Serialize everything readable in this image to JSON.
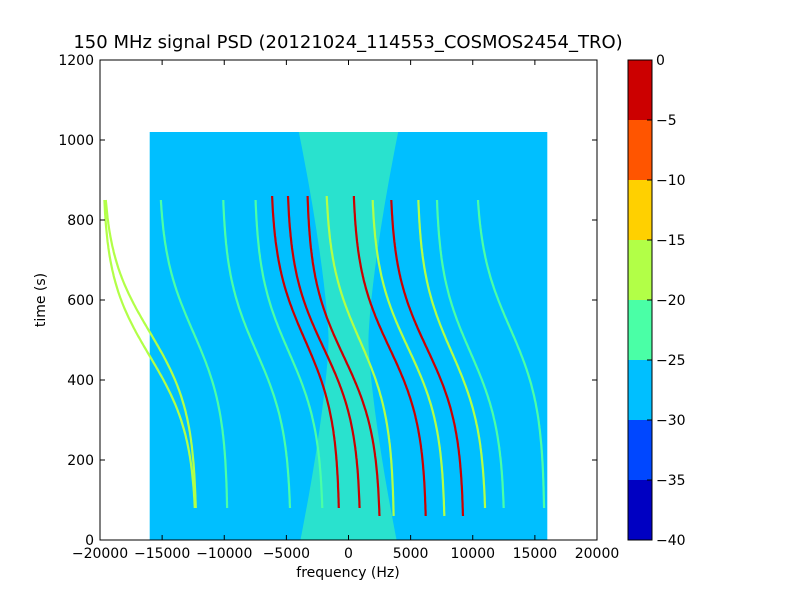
{
  "chart_data": {
    "type": "heatmap",
    "title": "150 MHz signal PSD (20121024_114553_COSMOS2454_TRO)",
    "xlabel": "frequency (Hz)",
    "ylabel": "time (s)",
    "xlim": [
      -20000,
      20000
    ],
    "ylim": [
      0,
      1200
    ],
    "xticks": [
      -20000,
      -15000,
      -10000,
      -5000,
      0,
      5000,
      10000,
      15000,
      20000
    ],
    "xtick_labels": [
      "−20000",
      "−15000",
      "−10000",
      "−5000",
      "0",
      "5000",
      "10000",
      "15000",
      "20000"
    ],
    "yticks": [
      0,
      200,
      400,
      600,
      800,
      1000,
      1200
    ],
    "ytick_labels": [
      "0",
      "200",
      "400",
      "600",
      "800",
      "1000",
      "1200"
    ],
    "data_extent": {
      "x": [
        -16000,
        16000
      ],
      "y": [
        0,
        1020
      ]
    },
    "background_level": -27.5,
    "center_band": {
      "x_center": 0,
      "level": -22.5
    },
    "traces": [
      {
        "x0": -16000,
        "t0": 520,
        "width": 3800,
        "tmin": 80,
        "tmax": 850,
        "level": -20
      },
      {
        "x0": -16000,
        "t0": 460,
        "width": 3800,
        "tmin": 80,
        "tmax": 850,
        "level": -20
      },
      {
        "x0": -12500,
        "t0": 520,
        "width": 2800,
        "tmin": 80,
        "tmax": 850,
        "level": -22.5
      },
      {
        "x0": -7400,
        "t0": 470,
        "width": 2800,
        "tmin": 80,
        "tmax": 850,
        "level": -22.5
      },
      {
        "x0": -4800,
        "t0": 470,
        "width": 2800,
        "tmin": 80,
        "tmax": 850,
        "level": -22.5
      },
      {
        "x0": -3500,
        "t0": 500,
        "width": 2800,
        "tmin": 80,
        "tmax": 860,
        "level": -2.5
      },
      {
        "x0": -2000,
        "t0": 480,
        "width": 3000,
        "tmin": 80,
        "tmax": 860,
        "level": -2.5
      },
      {
        "x0": -400,
        "t0": 460,
        "width": 3000,
        "tmin": 60,
        "tmax": 860,
        "level": -2.5
      },
      {
        "x0": 900,
        "t0": 500,
        "width": 2800,
        "tmin": 60,
        "tmax": 860,
        "level": -17.5
      },
      {
        "x0": 3300,
        "t0": 480,
        "width": 3000,
        "tmin": 60,
        "tmax": 860,
        "level": -2.5
      },
      {
        "x0": 4800,
        "t0": 480,
        "width": 3000,
        "tmin": 60,
        "tmax": 850,
        "level": -17.5
      },
      {
        "x0": 6300,
        "t0": 480,
        "width": 3000,
        "tmin": 60,
        "tmax": 850,
        "level": -2.5
      },
      {
        "x0": 8300,
        "t0": 470,
        "width": 2800,
        "tmin": 80,
        "tmax": 850,
        "level": -17.5
      },
      {
        "x0": 9800,
        "t0": 470,
        "width": 2800,
        "tmin": 80,
        "tmax": 850,
        "level": -22.5
      },
      {
        "x0": 13000,
        "t0": 530,
        "width": 2800,
        "tmin": 80,
        "tmax": 850,
        "level": -22.5
      }
    ],
    "colorbar": {
      "ticks": [
        0,
        -5,
        -10,
        -15,
        -20,
        -25,
        -30,
        -35,
        -40
      ],
      "tick_labels": [
        "0",
        "−5",
        "−10",
        "−15",
        "−20",
        "−25",
        "−30",
        "−35",
        "−40"
      ],
      "bands": [
        {
          "from": -5,
          "to": 0,
          "color": "#cc0000"
        },
        {
          "from": -10,
          "to": -5,
          "color": "#ff5500"
        },
        {
          "from": -15,
          "to": -10,
          "color": "#ffd000"
        },
        {
          "from": -20,
          "to": -15,
          "color": "#b2ff47"
        },
        {
          "from": -25,
          "to": -20,
          "color": "#4affa6"
        },
        {
          "from": -30,
          "to": -25,
          "color": "#00bfff"
        },
        {
          "from": -35,
          "to": -30,
          "color": "#0047ff"
        },
        {
          "from": -40,
          "to": -35,
          "color": "#0000c2"
        }
      ]
    }
  }
}
